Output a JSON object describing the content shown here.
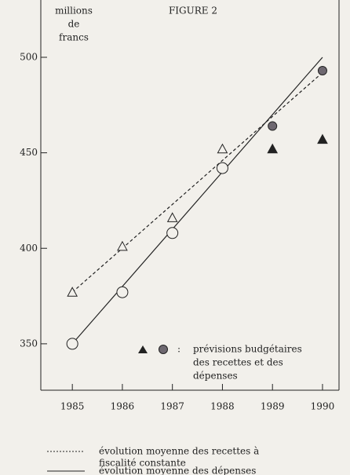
{
  "chart_data": {
    "type": "line",
    "title": "FIGURE 2",
    "y_label": [
      "millions",
      "de",
      "francs"
    ],
    "xlim": [
      1984.37,
      1990.33
    ],
    "xticks": [
      1985,
      1986,
      1987,
      1988,
      1989,
      1990
    ],
    "ylim": [
      325.7,
      530
    ],
    "yticks": [
      350,
      400,
      450,
      500
    ],
    "series": [
      {
        "name": [
          "évolution moyenne des recettes à",
          "fiscalité constante"
        ],
        "style": "dashed",
        "color": "#222",
        "x": [
          1985,
          1990
        ],
        "values": [
          377,
          492
        ]
      },
      {
        "name": [
          "évolution moyenne des dépenses"
        ],
        "style": "solid",
        "color": "#222",
        "x": [
          1985,
          1990
        ],
        "values": [
          350,
          500
        ]
      }
    ],
    "points": [
      {
        "marker": "triangle",
        "filled": false,
        "x": [
          1985,
          1986,
          1987,
          1988
        ],
        "values": [
          377,
          401,
          416,
          452
        ]
      },
      {
        "marker": "circle",
        "filled": false,
        "x": [
          1985,
          1986,
          1987,
          1988
        ],
        "values": [
          350,
          377,
          408,
          442
        ]
      },
      {
        "marker": "triangle",
        "filled": true,
        "x": [
          1989,
          1990
        ],
        "values": [
          452,
          457
        ]
      },
      {
        "marker": "circle",
        "filled": true,
        "x": [
          1989,
          1990
        ],
        "values": [
          464,
          493
        ]
      }
    ],
    "annotation": {
      "separator": ":",
      "lines": [
        "prévisions budgétaires",
        "des recettes et des",
        "dépenses"
      ]
    }
  }
}
